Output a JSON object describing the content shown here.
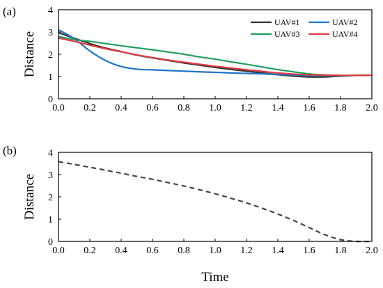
{
  "chart_data": [
    {
      "panel_label": "(a)",
      "type": "line",
      "title": "",
      "xlabel": "",
      "ylabel": "Distance",
      "xlim": [
        0.0,
        2.0
      ],
      "ylim": [
        0,
        4
      ],
      "xticks": [
        "0.0",
        "0.2",
        "0.4",
        "0.6",
        "0.8",
        "1.0",
        "1.2",
        "1.4",
        "1.6",
        "1.8",
        "2.0"
      ],
      "yticks": [
        "0",
        "1",
        "2",
        "3",
        "4"
      ],
      "grid": false,
      "legend_position": "top-right",
      "x": [
        0.0,
        0.1,
        0.2,
        0.3,
        0.4,
        0.5,
        0.6,
        0.7,
        0.8,
        0.9,
        1.0,
        1.1,
        1.2,
        1.3,
        1.4,
        1.5,
        1.6,
        1.7,
        1.8,
        1.9,
        2.0
      ],
      "series": [
        {
          "name": "UAV#1",
          "color": "#333333",
          "values": [
            2.97,
            2.72,
            2.48,
            2.28,
            2.12,
            1.96,
            1.84,
            1.72,
            1.61,
            1.51,
            1.41,
            1.32,
            1.24,
            1.16,
            1.08,
            1.02,
            0.98,
            0.98,
            1.02,
            1.05,
            1.06
          ]
        },
        {
          "name": "UAV#2",
          "color": "#1f74c8",
          "values": [
            3.1,
            2.7,
            2.15,
            1.72,
            1.45,
            1.33,
            1.3,
            1.27,
            1.24,
            1.21,
            1.19,
            1.16,
            1.14,
            1.12,
            1.09,
            1.07,
            1.05,
            1.04,
            1.04,
            1.05,
            1.06
          ]
        },
        {
          "name": "UAV#3",
          "color": "#1f9e5e",
          "values": [
            2.8,
            2.66,
            2.58,
            2.48,
            2.38,
            2.29,
            2.2,
            2.1,
            2.0,
            1.88,
            1.78,
            1.66,
            1.55,
            1.43,
            1.31,
            1.21,
            1.12,
            1.07,
            1.05,
            1.05,
            1.06
          ]
        },
        {
          "name": "UAV#4",
          "color": "#e23a3f",
          "values": [
            2.73,
            2.58,
            2.41,
            2.25,
            2.11,
            1.97,
            1.85,
            1.74,
            1.64,
            1.55,
            1.46,
            1.38,
            1.3,
            1.23,
            1.16,
            1.11,
            1.08,
            1.06,
            1.05,
            1.05,
            1.06
          ]
        }
      ]
    },
    {
      "panel_label": "(b)",
      "type": "line",
      "title": "",
      "xlabel": "Time",
      "ylabel": "Distance",
      "xlim": [
        0.0,
        2.0
      ],
      "ylim": [
        0,
        4
      ],
      "xticks": [
        "0.0",
        "0.2",
        "0.4",
        "0.6",
        "0.8",
        "1.0",
        "1.2",
        "1.4",
        "1.6",
        "1.8",
        "2.0"
      ],
      "yticks": [
        "0",
        "1",
        "2",
        "3",
        "4"
      ],
      "grid": false,
      "x": [
        0.0,
        0.1,
        0.2,
        0.3,
        0.4,
        0.5,
        0.6,
        0.7,
        0.8,
        0.9,
        1.0,
        1.1,
        1.2,
        1.3,
        1.4,
        1.5,
        1.6,
        1.7,
        1.8,
        1.9,
        2.0
      ],
      "series": [
        {
          "color": "#444444",
          "style": "dashed",
          "values": [
            3.58,
            3.46,
            3.33,
            3.2,
            3.06,
            2.92,
            2.79,
            2.64,
            2.49,
            2.32,
            2.14,
            1.94,
            1.73,
            1.49,
            1.23,
            0.94,
            0.62,
            0.3,
            0.08,
            0.0,
            0.0
          ]
        }
      ]
    }
  ]
}
